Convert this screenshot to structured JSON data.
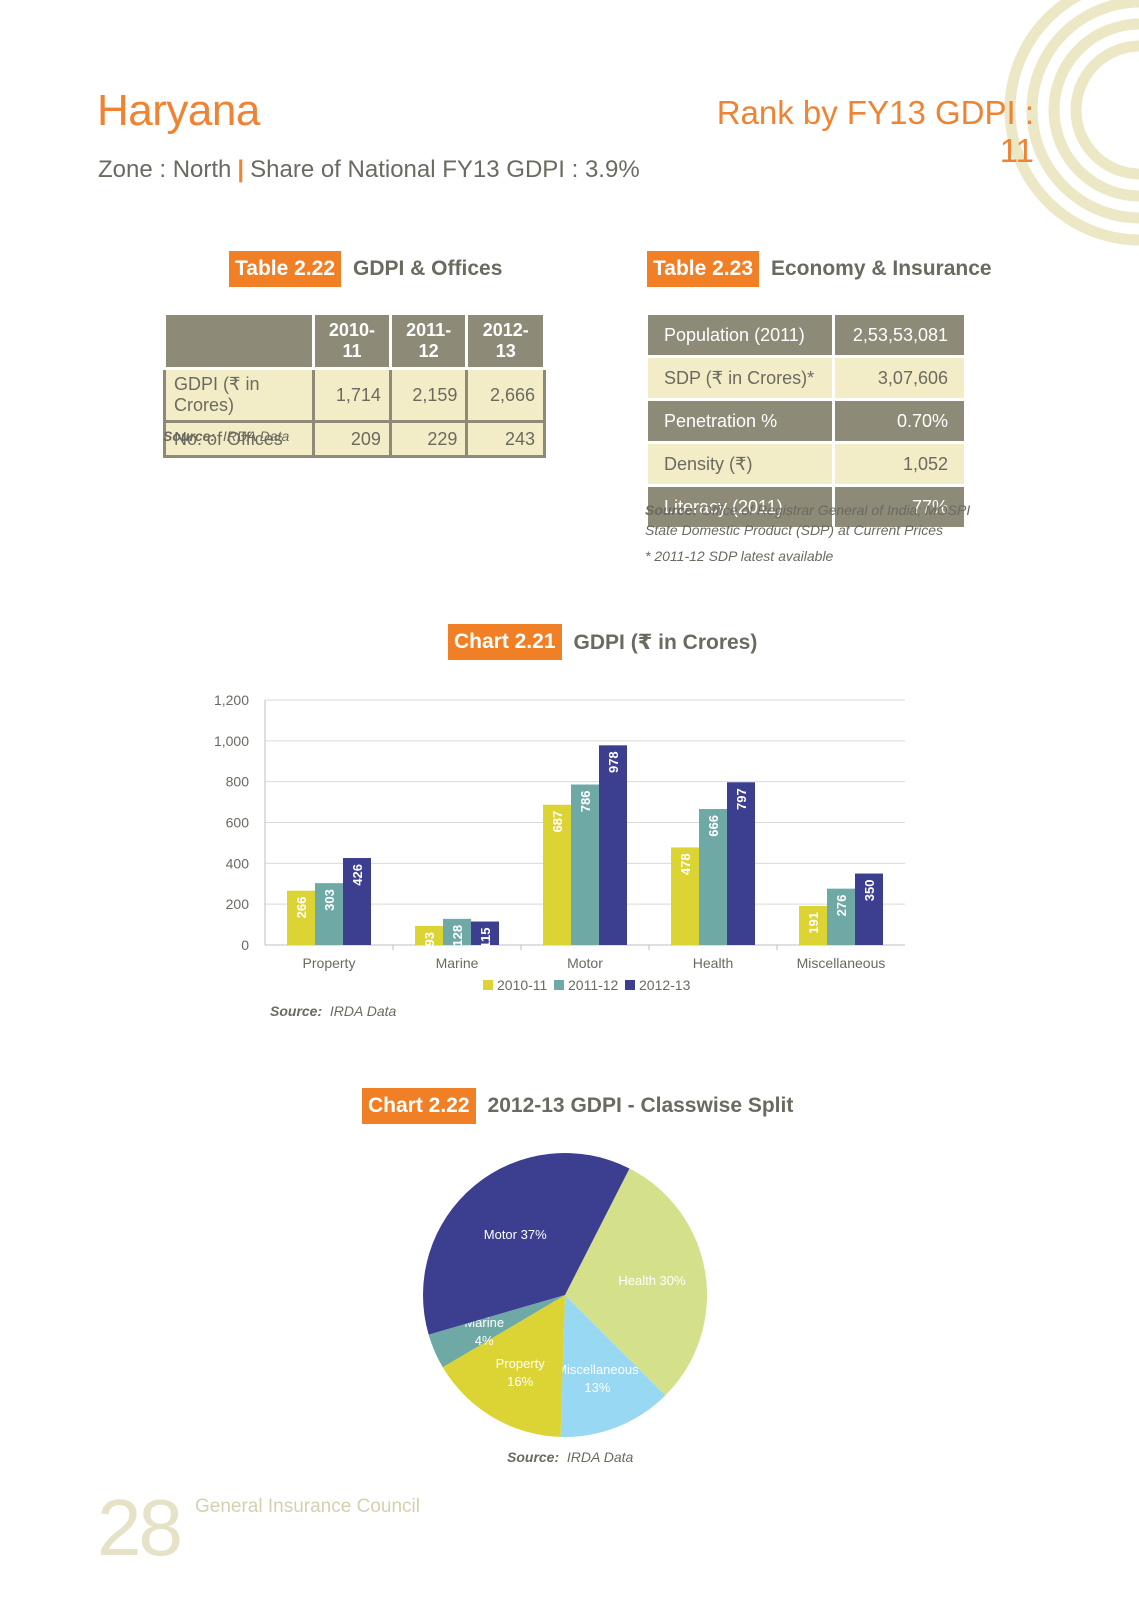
{
  "header": {
    "state": "Haryana",
    "rank_text": "Rank by FY13 GDPI : 11",
    "zone_text": "Zone : North",
    "separator": "|",
    "share_text": "Share of National FY13 GDPI : 3.9%"
  },
  "table_222": {
    "badge": "Table 2.22",
    "title": "GDPI & Offices",
    "columns": [
      "2010-11",
      "2011-12",
      "2012-13"
    ],
    "rows": [
      {
        "label": "GDPI (₹ in Crores)",
        "values": [
          "1,714",
          "2,159",
          "2,666"
        ]
      },
      {
        "label": "No. of Offices",
        "values": [
          "209",
          "229",
          "243"
        ]
      }
    ],
    "source_label": "Source:",
    "source_text": "IRDA Data"
  },
  "table_223": {
    "badge": "Table 2.23",
    "title": "Economy & Insurance",
    "rows": [
      {
        "label": "Population (2011)",
        "value": "2,53,53,081"
      },
      {
        "label": "SDP (₹ in Crores)*",
        "value": "3,07,606"
      },
      {
        "label": "Penetration %",
        "value": "0.70%"
      },
      {
        "label": "Density (₹)",
        "value": "1,052"
      },
      {
        "label": "Literacy (2011)",
        "value": "77%"
      }
    ],
    "source_label": "Source:",
    "source_line1": "Office of Registrar General of India; MOSPI",
    "source_line2": "State Domestic Product (SDP) at Current Prices",
    "footnote": "* 2011-12 SDP latest available"
  },
  "chart_221": {
    "badge": "Chart 2.21",
    "title": "GDPI (₹ in Crores)",
    "source_label": "Source:",
    "source_text": "IRDA Data"
  },
  "chart_222": {
    "badge": "Chart 2.22",
    "title": "2012-13 GDPI - Classwise Split",
    "source_label": "Source:",
    "source_text": "IRDA Data"
  },
  "chart_data": [
    {
      "type": "bar",
      "categories": [
        "Property",
        "Marine",
        "Motor",
        "Health",
        "Miscellaneous"
      ],
      "series": [
        {
          "name": "2010-11",
          "color": "#dcd435",
          "values": [
            266,
            93,
            687,
            478,
            191
          ]
        },
        {
          "name": "2011-12",
          "color": "#6fa9a6",
          "values": [
            303,
            128,
            786,
            666,
            276
          ]
        },
        {
          "name": "2012-13",
          "color": "#3c3e8f",
          "values": [
            426,
            115,
            978,
            797,
            350
          ]
        }
      ],
      "ylim": [
        0,
        1200
      ],
      "yticks": [
        "0",
        "200",
        "400",
        "600",
        "800",
        "1,000",
        "1,200"
      ],
      "ytick_values": [
        0,
        200,
        400,
        600,
        800,
        1000,
        1200
      ],
      "grid": true,
      "legend": "bottom"
    },
    {
      "type": "pie",
      "slices": [
        {
          "label": "Health",
          "pct_text": "30%",
          "value": 30,
          "color": "#d4e08a",
          "text_color": "#ffffff"
        },
        {
          "label": "Miscellaneous",
          "pct_text": "13%",
          "value": 13,
          "color": "#99d8f2",
          "text_color": "#ffffff"
        },
        {
          "label": "Property",
          "pct_text": "16%",
          "value": 16,
          "color": "#dcd435",
          "text_color": "#ffffff"
        },
        {
          "label": "Marine",
          "pct_text": "4%",
          "value": 4,
          "color": "#6fa9a6",
          "text_color": "#ffffff"
        },
        {
          "label": "Motor",
          "pct_text": "37%",
          "value": 37,
          "color": "#3c3e8f",
          "text_color": "#ffffff"
        }
      ]
    }
  ],
  "footer": {
    "page_number": "28",
    "org": "General Insurance Council"
  }
}
